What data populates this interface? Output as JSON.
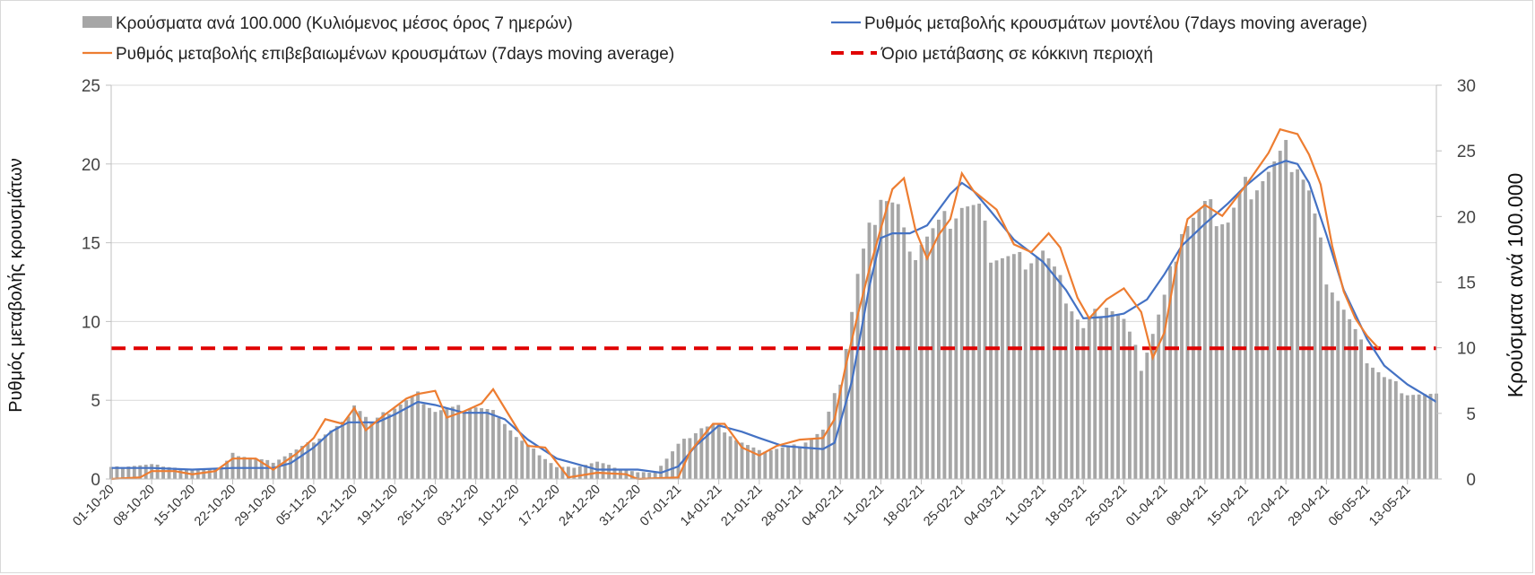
{
  "chart_data": {
    "type": "bar+line",
    "title": "",
    "legend": {
      "placement": "top",
      "items": [
        {
          "key": "bars",
          "label": "Κρούσματα ανά 100.000 (Κυλιόμενος μέσος όρος 7 ημερών)",
          "color": "#a6a6a6",
          "style": "bar"
        },
        {
          "key": "model",
          "label": "Ρυθμός μεταβολής κρουσμάτων μοντέλου (7days moving average)",
          "color": "#4472c4",
          "style": "line"
        },
        {
          "key": "confirmed",
          "label": "Ρυθμός μεταβολής επιβεβαιωμένων κρουσμάτων (7days moving average)",
          "color": "#ed7d31",
          "style": "line"
        },
        {
          "key": "threshold",
          "label": "Όριο μετάβασης σε κόκκινη περιοχή",
          "color": "#e00000",
          "style": "dashed"
        }
      ]
    },
    "y_left": {
      "label": "Ρυθμός μεταβολής κρουσμάτων",
      "ylim": [
        0,
        25
      ],
      "ticks": [
        "0",
        "5",
        "10",
        "15",
        "20",
        "25"
      ]
    },
    "y_right": {
      "label": "Κρούσματα ανά 100.000",
      "ylim": [
        0,
        30
      ],
      "ticks": [
        "0",
        "5",
        "10",
        "15",
        "20",
        "25",
        "30"
      ]
    },
    "x_start": "01-10-20",
    "x_end": "18-05-21",
    "x_tick_labels": [
      "01-10-20",
      "08-10-20",
      "15-10-20",
      "22-10-20",
      "29-10-20",
      "05-11-20",
      "12-11-20",
      "19-11-20",
      "26-11-20",
      "03-12-20",
      "10-12-20",
      "17-12-20",
      "24-12-20",
      "31-12-20",
      "07-01-21",
      "14-01-21",
      "21-01-21",
      "28-01-21",
      "04-02-21",
      "11-02-21",
      "18-02-21",
      "25-02-21",
      "04-03-21",
      "11-03-21",
      "18-03-21",
      "25-03-21",
      "01-04-21",
      "08-04-21",
      "15-04-21",
      "22-04-21",
      "29-04-21",
      "06-05-21",
      "13-05-21"
    ],
    "grid": true,
    "threshold_value_left_axis": 8.3,
    "bars_series": {
      "name": "Κρούσματα ανά 100.000 (Κυλιόμενος μέσος όρος 7 ημερών)",
      "axis": "right",
      "points": [
        [
          "01-10-20",
          0.9
        ],
        [
          "08-10-20",
          1.1
        ],
        [
          "15-10-20",
          0.7
        ],
        [
          "20-10-20",
          0.8
        ],
        [
          "22-10-20",
          1.9
        ],
        [
          "29-10-20",
          1.3
        ],
        [
          "05-11-20",
          2.9
        ],
        [
          "10-11-20",
          4.2
        ],
        [
          "12-11-20",
          5.8
        ],
        [
          "15-11-20",
          4.2
        ],
        [
          "19-11-20",
          5.5
        ],
        [
          "23-11-20",
          6.4
        ],
        [
          "26-11-20",
          5.2
        ],
        [
          "03-12-20",
          5.5
        ],
        [
          "07-12-20",
          4.9
        ],
        [
          "10-12-20",
          3.2
        ],
        [
          "17-12-20",
          0.9
        ],
        [
          "20-12-20",
          0.9
        ],
        [
          "24-12-20",
          1.3
        ],
        [
          "27-12-20",
          0.9
        ],
        [
          "31-12-20",
          0.5
        ],
        [
          "03-01-21",
          0.5
        ],
        [
          "07-01-21",
          2.6
        ],
        [
          "11-01-21",
          3.9
        ],
        [
          "14-01-21",
          4.1
        ],
        [
          "17-01-21",
          3.0
        ],
        [
          "21-01-21",
          2.1
        ],
        [
          "28-01-21",
          2.6
        ],
        [
          "01-02-21",
          3.7
        ],
        [
          "04-02-21",
          7.5
        ],
        [
          "07-02-21",
          15.5
        ],
        [
          "11-02-21",
          22.0
        ],
        [
          "14-02-21",
          20.6
        ],
        [
          "16-02-21",
          16.5
        ],
        [
          "18-02-21",
          18.3
        ],
        [
          "22-02-21",
          19.6
        ],
        [
          "25-02-21",
          21.0
        ],
        [
          "28-02-21",
          20.3
        ],
        [
          "02-03-21",
          17.2
        ],
        [
          "07-03-21",
          16.6
        ],
        [
          "11-03-21",
          17.4
        ],
        [
          "14-03-21",
          14.8
        ],
        [
          "18-03-21",
          11.4
        ],
        [
          "22-03-21",
          13.5
        ],
        [
          "25-03-21",
          12.0
        ],
        [
          "28-03-21",
          8.6
        ],
        [
          "01-04-21",
          13.7
        ],
        [
          "04-04-21",
          19.3
        ],
        [
          "08-04-21",
          20.5
        ],
        [
          "12-04-21",
          19.7
        ],
        [
          "15-04-21",
          22.1
        ],
        [
          "19-04-21",
          23.4
        ],
        [
          "22-04-21",
          24.6
        ],
        [
          "24-04-21",
          24.2
        ],
        [
          "26-04-21",
          21.8
        ],
        [
          "29-04-21",
          15.6
        ],
        [
          "02-05-21",
          12.9
        ],
        [
          "06-05-21",
          9.2
        ],
        [
          "09-05-21",
          7.7
        ],
        [
          "13-05-21",
          6.6
        ],
        [
          "18-05-21",
          6.2
        ]
      ]
    },
    "series": [
      {
        "name": "Ρυθμός μεταβολής κρουσμάτων μοντέλου (7days moving average)",
        "axis": "left",
        "points": [
          [
            "01-10-20",
            0.7
          ],
          [
            "08-10-20",
            0.7
          ],
          [
            "15-10-20",
            0.6
          ],
          [
            "22-10-20",
            0.7
          ],
          [
            "29-10-20",
            0.7
          ],
          [
            "01-11-20",
            1.0
          ],
          [
            "05-11-20",
            2.0
          ],
          [
            "08-11-20",
            3.0
          ],
          [
            "11-11-20",
            3.6
          ],
          [
            "16-11-20",
            3.6
          ],
          [
            "19-11-20",
            4.1
          ],
          [
            "23-11-20",
            4.9
          ],
          [
            "26-11-20",
            4.7
          ],
          [
            "01-12-20",
            4.2
          ],
          [
            "05-12-20",
            4.2
          ],
          [
            "08-12-20",
            3.8
          ],
          [
            "12-12-20",
            2.5
          ],
          [
            "17-12-20",
            1.3
          ],
          [
            "24-12-20",
            0.6
          ],
          [
            "31-12-20",
            0.6
          ],
          [
            "04-01-21",
            0.4
          ],
          [
            "07-01-21",
            0.8
          ],
          [
            "10-01-21",
            2.1
          ],
          [
            "14-01-21",
            3.4
          ],
          [
            "18-01-21",
            3.0
          ],
          [
            "21-01-21",
            2.6
          ],
          [
            "25-01-21",
            2.1
          ],
          [
            "01-02-21",
            1.9
          ],
          [
            "03-02-21",
            2.3
          ],
          [
            "06-02-21",
            6.2
          ],
          [
            "09-02-21",
            12.2
          ],
          [
            "11-02-21",
            15.3
          ],
          [
            "13-02-21",
            15.6
          ],
          [
            "16-02-21",
            15.6
          ],
          [
            "19-02-21",
            16.1
          ],
          [
            "23-02-21",
            18.1
          ],
          [
            "25-02-21",
            18.8
          ],
          [
            "27-02-21",
            18.3
          ],
          [
            "02-03-21",
            17.0
          ],
          [
            "06-03-21",
            15.2
          ],
          [
            "11-03-21",
            13.8
          ],
          [
            "15-03-21",
            12.0
          ],
          [
            "18-03-21",
            10.2
          ],
          [
            "22-03-21",
            10.3
          ],
          [
            "25-03-21",
            10.5
          ],
          [
            "29-03-21",
            11.4
          ],
          [
            "01-04-21",
            13.0
          ],
          [
            "04-04-21",
            14.8
          ],
          [
            "08-04-21",
            16.2
          ],
          [
            "12-04-21",
            17.5
          ],
          [
            "15-04-21",
            18.6
          ],
          [
            "19-04-21",
            19.8
          ],
          [
            "22-04-21",
            20.2
          ],
          [
            "24-04-21",
            20.0
          ],
          [
            "26-04-21",
            18.8
          ],
          [
            "29-04-21",
            15.5
          ],
          [
            "02-05-21",
            12.0
          ],
          [
            "06-05-21",
            8.9
          ],
          [
            "09-05-21",
            7.2
          ],
          [
            "13-05-21",
            6.0
          ],
          [
            "18-05-21",
            4.9
          ]
        ]
      },
      {
        "name": "Ρυθμός μεταβολής επιβεβαιωμένων κρουσμάτων (7days moving average)",
        "axis": "left",
        "points": [
          [
            "01-10-20",
            0.0
          ],
          [
            "06-10-20",
            0.1
          ],
          [
            "08-10-20",
            0.5
          ],
          [
            "12-10-20",
            0.5
          ],
          [
            "15-10-20",
            0.3
          ],
          [
            "19-10-20",
            0.5
          ],
          [
            "22-10-20",
            1.3
          ],
          [
            "26-10-20",
            1.3
          ],
          [
            "29-10-20",
            0.6
          ],
          [
            "02-11-20",
            1.6
          ],
          [
            "05-11-20",
            2.6
          ],
          [
            "07-11-20",
            3.8
          ],
          [
            "10-11-20",
            3.5
          ],
          [
            "12-11-20",
            4.5
          ],
          [
            "14-11-20",
            3.1
          ],
          [
            "17-11-20",
            4.0
          ],
          [
            "21-11-20",
            5.1
          ],
          [
            "23-11-20",
            5.4
          ],
          [
            "26-11-20",
            5.6
          ],
          [
            "28-11-20",
            3.9
          ],
          [
            "01-12-20",
            4.3
          ],
          [
            "04-12-20",
            4.8
          ],
          [
            "06-12-20",
            5.7
          ],
          [
            "09-12-20",
            3.9
          ],
          [
            "12-12-20",
            2.1
          ],
          [
            "15-12-20",
            2.0
          ],
          [
            "19-12-20",
            0.1
          ],
          [
            "24-12-20",
            0.4
          ],
          [
            "29-12-20",
            0.3
          ],
          [
            "31-12-20",
            0.0
          ],
          [
            "07-01-21",
            0.1
          ],
          [
            "09-01-21",
            1.7
          ],
          [
            "13-01-21",
            3.5
          ],
          [
            "15-01-21",
            3.5
          ],
          [
            "18-01-21",
            2.0
          ],
          [
            "21-01-21",
            1.5
          ],
          [
            "24-01-21",
            2.1
          ],
          [
            "28-01-21",
            2.5
          ],
          [
            "01-02-21",
            2.6
          ],
          [
            "03-02-21",
            3.8
          ],
          [
            "05-02-21",
            7.3
          ],
          [
            "07-02-21",
            10.4
          ],
          [
            "09-02-21",
            13.3
          ],
          [
            "11-02-21",
            15.9
          ],
          [
            "13-02-21",
            18.4
          ],
          [
            "15-02-21",
            19.1
          ],
          [
            "17-02-21",
            15.8
          ],
          [
            "19-02-21",
            14.0
          ],
          [
            "21-02-21",
            15.5
          ],
          [
            "23-02-21",
            16.5
          ],
          [
            "25-02-21",
            19.4
          ],
          [
            "27-02-21",
            18.3
          ],
          [
            "01-03-21",
            17.7
          ],
          [
            "03-03-21",
            17.1
          ],
          [
            "06-03-21",
            14.9
          ],
          [
            "09-03-21",
            14.4
          ],
          [
            "12-03-21",
            15.6
          ],
          [
            "14-03-21",
            14.7
          ],
          [
            "17-03-21",
            11.5
          ],
          [
            "19-03-21",
            10.2
          ],
          [
            "22-03-21",
            11.4
          ],
          [
            "25-03-21",
            12.1
          ],
          [
            "28-03-21",
            10.6
          ],
          [
            "30-03-21",
            7.7
          ],
          [
            "01-04-21",
            9.3
          ],
          [
            "03-04-21",
            13.4
          ],
          [
            "05-04-21",
            16.5
          ],
          [
            "08-04-21",
            17.4
          ],
          [
            "11-04-21",
            16.7
          ],
          [
            "15-04-21",
            18.6
          ],
          [
            "19-04-21",
            20.7
          ],
          [
            "21-04-21",
            22.2
          ],
          [
            "24-04-21",
            21.9
          ],
          [
            "26-04-21",
            20.6
          ],
          [
            "28-04-21",
            18.7
          ],
          [
            "30-04-21",
            14.8
          ],
          [
            "02-05-21",
            11.9
          ],
          [
            "04-05-21",
            10.2
          ],
          [
            "06-05-21",
            9.1
          ],
          [
            "08-05-21",
            8.3
          ]
        ]
      }
    ]
  }
}
